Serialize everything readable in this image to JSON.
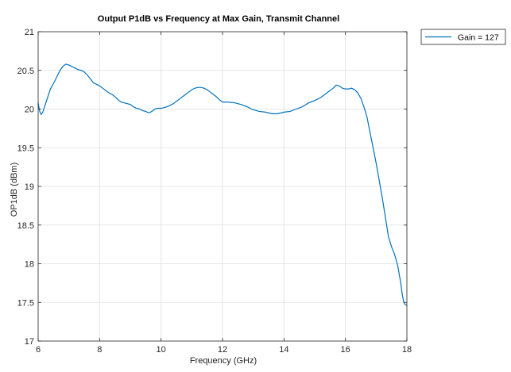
{
  "chart_data": {
    "type": "line",
    "title": "Output P1dB vs Frequency at Max Gain, Transmit Channel",
    "xlabel": "Frequency (GHz)",
    "ylabel": "OP1dB (dBm)",
    "xlim": [
      6,
      18
    ],
    "ylim": [
      17,
      21
    ],
    "xticks": [
      6,
      8,
      10,
      12,
      14,
      16,
      18
    ],
    "xtick_labels": [
      "6",
      "8",
      "10",
      "12",
      "14",
      "16",
      "18"
    ],
    "yticks": [
      17,
      17.5,
      18,
      18.5,
      19,
      19.5,
      20,
      20.5,
      21
    ],
    "ytick_labels": [
      "17",
      "17.5",
      "18",
      "18.5",
      "19",
      "19.5",
      "20",
      "20.5",
      "21"
    ],
    "grid": true,
    "legend_position": "outside-top-right",
    "line_color": "#0072BD",
    "series": [
      {
        "name": "Gain = 127",
        "x": [
          6.0,
          6.05,
          6.1,
          6.15,
          6.2,
          6.3,
          6.4,
          6.5,
          6.6,
          6.7,
          6.8,
          6.9,
          7.0,
          7.1,
          7.2,
          7.3,
          7.4,
          7.5,
          7.6,
          7.7,
          7.8,
          7.9,
          8.0,
          8.1,
          8.2,
          8.3,
          8.4,
          8.5,
          8.6,
          8.7,
          8.8,
          8.9,
          9.0,
          9.1,
          9.2,
          9.3,
          9.4,
          9.5,
          9.6,
          9.7,
          9.8,
          9.9,
          10.0,
          10.2,
          10.4,
          10.6,
          10.8,
          10.9,
          11.0,
          11.1,
          11.2,
          11.3,
          11.4,
          11.5,
          11.6,
          11.7,
          11.8,
          11.9,
          12.0,
          12.2,
          12.4,
          12.6,
          12.8,
          13.0,
          13.2,
          13.4,
          13.6,
          13.8,
          14.0,
          14.2,
          14.4,
          14.6,
          14.8,
          15.0,
          15.2,
          15.4,
          15.6,
          15.7,
          15.8,
          15.9,
          16.0,
          16.1,
          16.2,
          16.3,
          16.4,
          16.5,
          16.6,
          16.7,
          16.8,
          17.0,
          17.2,
          17.4,
          17.5,
          17.6,
          17.7,
          17.8,
          17.85,
          17.9,
          17.95,
          18.0
        ],
        "y": [
          20.08,
          19.97,
          19.93,
          19.96,
          20.02,
          20.14,
          20.26,
          20.33,
          20.41,
          20.49,
          20.55,
          20.58,
          20.57,
          20.55,
          20.53,
          20.51,
          20.5,
          20.48,
          20.44,
          20.39,
          20.34,
          20.32,
          20.3,
          20.27,
          20.24,
          20.21,
          20.19,
          20.16,
          20.12,
          20.09,
          20.08,
          20.07,
          20.06,
          20.03,
          20.01,
          20.0,
          19.98,
          19.97,
          19.95,
          19.97,
          20.0,
          20.01,
          20.01,
          20.03,
          20.07,
          20.13,
          20.19,
          20.22,
          20.25,
          20.27,
          20.28,
          20.28,
          20.27,
          20.25,
          20.22,
          20.19,
          20.16,
          20.12,
          20.09,
          20.09,
          20.08,
          20.06,
          20.03,
          19.99,
          19.97,
          19.96,
          19.94,
          19.94,
          19.96,
          19.97,
          20.0,
          20.03,
          20.08,
          20.11,
          20.15,
          20.21,
          20.27,
          20.31,
          20.3,
          20.27,
          20.26,
          20.26,
          20.27,
          20.25,
          20.21,
          20.14,
          20.03,
          19.9,
          19.7,
          19.3,
          18.85,
          18.35,
          18.22,
          18.12,
          17.98,
          17.75,
          17.6,
          17.5,
          17.47,
          17.46
        ]
      }
    ]
  }
}
